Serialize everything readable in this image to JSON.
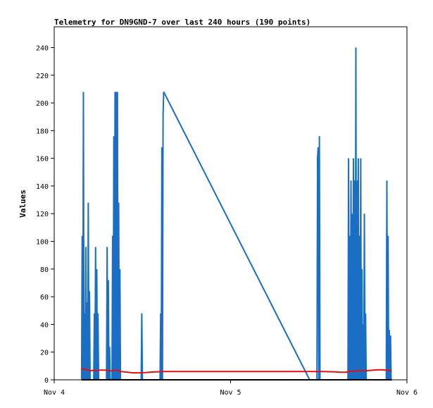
{
  "chart_data": {
    "type": "line",
    "title": "Telemetry for DN9GND-7 over last 240 hours (190 points)",
    "xlabel": "",
    "ylabel": "Values",
    "xlim": [
      "Nov 4 00:00",
      "Nov 6 00:00"
    ],
    "ylim": [
      0,
      255
    ],
    "x_ticks": [
      "Nov 4",
      "Nov 5",
      "Nov 6"
    ],
    "y_ticks": [
      0,
      20,
      40,
      60,
      80,
      100,
      120,
      140,
      160,
      180,
      200,
      220,
      240
    ],
    "grid": false,
    "legend": "none",
    "x_unit_note": "x values in hours since Nov 4 00:00",
    "series": [
      {
        "color": "#1a6fc4",
        "points": [
          [
            4.5,
            0
          ],
          [
            4.6,
            104
          ],
          [
            4.7,
            0
          ],
          [
            4.8,
            208
          ],
          [
            4.9,
            0
          ],
          [
            5.0,
            48
          ],
          [
            5.1,
            0
          ],
          [
            5.2,
            96
          ],
          [
            5.3,
            0
          ],
          [
            5.4,
            56
          ],
          [
            5.5,
            0
          ],
          [
            5.6,
            128
          ],
          [
            5.7,
            0
          ],
          [
            5.8,
            64
          ],
          [
            5.9,
            0
          ],
          [
            6.5,
            0
          ],
          [
            6.6,
            48
          ],
          [
            6.7,
            0
          ],
          [
            6.8,
            96
          ],
          [
            6.9,
            0
          ],
          [
            7.0,
            80
          ],
          [
            7.1,
            0
          ],
          [
            7.2,
            48
          ],
          [
            7.3,
            0
          ],
          [
            8.6,
            0
          ],
          [
            8.7,
            96
          ],
          [
            8.8,
            0
          ],
          [
            8.9,
            72
          ],
          [
            9.0,
            0
          ],
          [
            9.1,
            24
          ],
          [
            9.2,
            0
          ],
          [
            9.5,
            0
          ],
          [
            9.6,
            104
          ],
          [
            9.7,
            0
          ],
          [
            9.8,
            176
          ],
          [
            9.9,
            0
          ],
          [
            10.0,
            208
          ],
          [
            10.1,
            0
          ],
          [
            10.2,
            208
          ],
          [
            10.3,
            0
          ],
          [
            10.4,
            208
          ],
          [
            10.5,
            0
          ],
          [
            10.6,
            128
          ],
          [
            10.7,
            0
          ],
          [
            10.8,
            80
          ],
          [
            10.9,
            0
          ],
          [
            14.3,
            0
          ],
          [
            14.4,
            48
          ],
          [
            14.5,
            0
          ],
          [
            17.4,
            0
          ],
          [
            17.5,
            48
          ],
          [
            17.6,
            0
          ],
          [
            17.7,
            168
          ],
          [
            17.8,
            0
          ],
          [
            17.9,
            192
          ],
          [
            18.0,
            208
          ],
          [
            42.0,
            0
          ],
          [
            42.1,
            0
          ],
          [
            43.2,
            0
          ],
          [
            43.3,
            160
          ],
          [
            43.4,
            168
          ],
          [
            43.5,
            0
          ],
          [
            43.6,
            176
          ],
          [
            43.7,
            0
          ],
          [
            46.0,
            0
          ],
          [
            46.1,
            0
          ],
          [
            48.3,
            0
          ],
          [
            48.4,
            160
          ],
          [
            48.5,
            0
          ],
          [
            48.6,
            104
          ],
          [
            48.7,
            0
          ],
          [
            48.8,
            144
          ],
          [
            48.9,
            0
          ],
          [
            49.0,
            120
          ],
          [
            49.1,
            0
          ],
          [
            49.2,
            160
          ],
          [
            49.3,
            0
          ],
          [
            49.4,
            144
          ],
          [
            49.5,
            0
          ],
          [
            49.6,
            240
          ],
          [
            49.7,
            0
          ],
          [
            49.8,
            144
          ],
          [
            49.9,
            0
          ],
          [
            50.0,
            160
          ],
          [
            50.1,
            0
          ],
          [
            50.2,
            104
          ],
          [
            50.3,
            0
          ],
          [
            50.4,
            160
          ],
          [
            50.5,
            0
          ],
          [
            50.6,
            80
          ],
          [
            50.7,
            0
          ],
          [
            50.8,
            40
          ],
          [
            50.9,
            0
          ],
          [
            51.0,
            120
          ],
          [
            51.1,
            0
          ],
          [
            51.2,
            48
          ],
          [
            51.3,
            0
          ],
          [
            54.6,
            0
          ],
          [
            54.7,
            144
          ],
          [
            54.8,
            0
          ],
          [
            54.9,
            104
          ],
          [
            55.0,
            0
          ],
          [
            55.1,
            36
          ],
          [
            55.2,
            0
          ],
          [
            55.3,
            32
          ],
          [
            55.4,
            0
          ],
          [
            55.5,
            0
          ]
        ]
      },
      {
        "color": "#e01010",
        "points": [
          [
            4.5,
            8
          ],
          [
            5,
            7.5
          ],
          [
            5.5,
            7
          ],
          [
            6,
            6.5
          ],
          [
            6.5,
            7
          ],
          [
            7,
            6.5
          ],
          [
            7.5,
            7
          ],
          [
            8,
            7
          ],
          [
            8.5,
            7
          ],
          [
            9,
            6.5
          ],
          [
            9.5,
            6.5
          ],
          [
            10,
            7
          ],
          [
            10.5,
            6.5
          ],
          [
            11,
            6
          ],
          [
            12,
            5.5
          ],
          [
            13,
            5
          ],
          [
            14,
            5
          ],
          [
            15,
            5.2
          ],
          [
            16,
            5.6
          ],
          [
            17,
            5.8
          ],
          [
            18,
            6
          ],
          [
            20,
            6
          ],
          [
            25,
            6
          ],
          [
            30,
            6
          ],
          [
            35,
            6
          ],
          [
            40,
            6
          ],
          [
            44,
            6
          ],
          [
            46,
            5.8
          ],
          [
            47,
            5.5
          ],
          [
            48,
            5.5
          ],
          [
            48.5,
            6
          ],
          [
            49,
            6.2
          ],
          [
            50,
            6.5
          ],
          [
            51,
            6.5
          ],
          [
            52,
            6.8
          ],
          [
            53,
            7.2
          ],
          [
            54,
            7.2
          ],
          [
            54.5,
            7
          ],
          [
            55,
            6.8
          ],
          [
            55.5,
            6.5
          ]
        ]
      },
      {
        "color": "#000000",
        "points": [
          [
            4.5,
            0
          ],
          [
            55.5,
            0
          ]
        ]
      }
    ]
  }
}
